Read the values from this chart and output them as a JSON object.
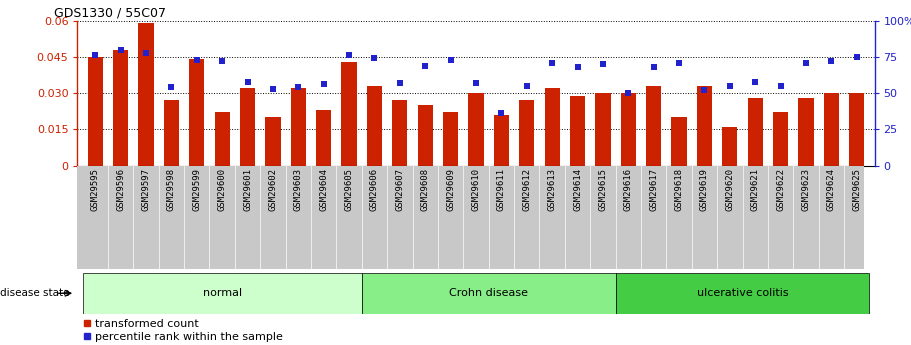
{
  "title": "GDS1330 / 55C07",
  "samples": [
    "GSM29595",
    "GSM29596",
    "GSM29597",
    "GSM29598",
    "GSM29599",
    "GSM29600",
    "GSM29601",
    "GSM29602",
    "GSM29603",
    "GSM29604",
    "GSM29605",
    "GSM29606",
    "GSM29607",
    "GSM29608",
    "GSM29609",
    "GSM29610",
    "GSM29611",
    "GSM29612",
    "GSM29613",
    "GSM29614",
    "GSM29615",
    "GSM29616",
    "GSM29617",
    "GSM29618",
    "GSM29619",
    "GSM29620",
    "GSM29621",
    "GSM29622",
    "GSM29623",
    "GSM29624",
    "GSM29625"
  ],
  "bar_values": [
    0.045,
    0.048,
    0.059,
    0.027,
    0.044,
    0.022,
    0.032,
    0.02,
    0.032,
    0.023,
    0.043,
    0.033,
    0.027,
    0.025,
    0.022,
    0.03,
    0.021,
    0.027,
    0.032,
    0.029,
    0.03,
    0.03,
    0.033,
    0.02,
    0.033,
    0.016,
    0.028,
    0.022,
    0.028,
    0.03,
    0.03
  ],
  "dot_values": [
    76,
    80,
    78,
    54,
    73,
    72,
    58,
    53,
    54,
    56,
    76,
    74,
    57,
    69,
    73,
    57,
    36,
    55,
    71,
    68,
    70,
    50,
    68,
    71,
    52,
    55,
    58,
    55,
    71,
    72,
    75
  ],
  "groups": [
    {
      "label": "normal",
      "start": 0,
      "end": 10,
      "color": "#ccffcc"
    },
    {
      "label": "Crohn disease",
      "start": 11,
      "end": 20,
      "color": "#88ee88"
    },
    {
      "label": "ulcerative colitis",
      "start": 21,
      "end": 30,
      "color": "#44cc44"
    }
  ],
  "bar_color": "#cc2200",
  "dot_color": "#2222cc",
  "ylim_left": [
    0,
    0.06
  ],
  "ylim_right": [
    0,
    100
  ],
  "yticks_left": [
    0,
    0.015,
    0.03,
    0.045,
    0.06
  ],
  "ytick_labels_left": [
    "0",
    "0.015",
    "0.030",
    "0.045",
    "0.06"
  ],
  "yticks_right": [
    0,
    25,
    50,
    75,
    100
  ],
  "ytick_labels_right": [
    "0",
    "25",
    "50",
    "75",
    "100%"
  ],
  "grid_values": [
    0.015,
    0.03,
    0.045
  ],
  "legend": [
    {
      "label": "transformed count",
      "color": "#cc2200"
    },
    {
      "label": "percentile rank within the sample",
      "color": "#2222cc"
    }
  ],
  "disease_state_label": "disease state",
  "xtick_bg_color": "#c8c8c8"
}
